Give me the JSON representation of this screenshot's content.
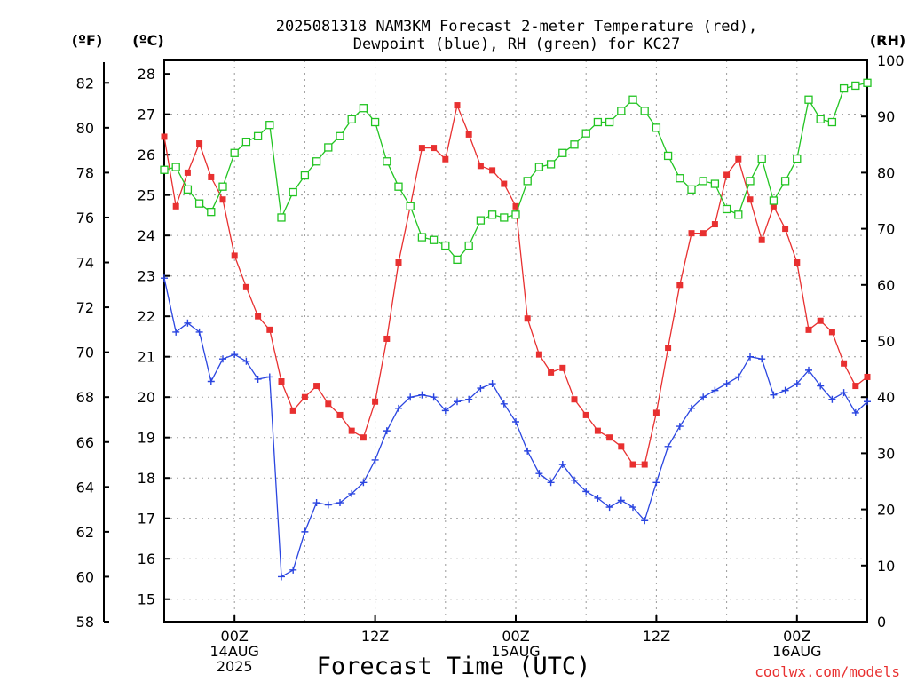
{
  "chart_data": {
    "type": "line",
    "title": [
      "2025081318 NAM3KM Forecast 2-meter Temperature (red),",
      "Dewpoint (blue), RH (green) for KC27"
    ],
    "xlabel": "Forecast Time (UTC)",
    "credit": "coolwx.com/models",
    "grid": true,
    "axes": {
      "left_f": {
        "unit": "(ºF)",
        "range": [
          58,
          83
        ],
        "ticks": [
          58,
          60,
          62,
          64,
          66,
          68,
          70,
          72,
          74,
          76,
          78,
          80,
          82
        ]
      },
      "left_c": {
        "unit": "(ºC)",
        "range": [
          14.444,
          28.333
        ],
        "ticks": [
          15,
          16,
          17,
          18,
          19,
          20,
          21,
          22,
          23,
          24,
          25,
          26,
          27,
          28
        ]
      },
      "right_rh": {
        "unit": "(RH)",
        "range": [
          0,
          100
        ],
        "ticks": [
          0,
          10,
          20,
          30,
          40,
          50,
          60,
          70,
          80,
          90,
          100
        ]
      }
    },
    "x_ticks": [
      {
        "hour": 6,
        "lines": [
          "00Z",
          "14AUG",
          "2025"
        ]
      },
      {
        "hour": 18,
        "lines": [
          "12Z"
        ]
      },
      {
        "hour": 30,
        "lines": [
          "00Z",
          "15AUG"
        ]
      },
      {
        "hour": 42,
        "lines": [
          "12Z"
        ]
      },
      {
        "hour": 54,
        "lines": [
          "00Z",
          "16AUG"
        ]
      }
    ],
    "x_range": [
      0,
      60
    ],
    "x_grid_hours": [
      6,
      12,
      18,
      24,
      30,
      36,
      42,
      48,
      54
    ],
    "series": [
      {
        "key": "temp",
        "axis": "left_f",
        "color": "#e83030",
        "marker": "filled-square",
        "values": [
          79.6,
          76.5,
          78.0,
          79.3,
          77.8,
          76.8,
          74.3,
          72.9,
          71.6,
          71.0,
          68.7,
          67.4,
          68.0,
          68.5,
          67.7,
          67.2,
          66.5,
          66.2,
          67.8,
          70.6,
          74.0,
          76.5,
          79.1,
          79.1,
          78.6,
          81.0,
          79.7,
          78.3,
          78.1,
          77.5,
          76.5,
          71.5,
          69.9,
          69.1,
          69.3,
          67.9,
          67.2,
          66.5,
          66.2,
          65.8,
          65.0,
          65.0,
          67.3,
          70.2,
          73.0,
          75.3,
          75.3,
          75.7,
          77.9,
          78.6,
          76.8,
          75.0,
          76.5,
          75.5,
          74.0,
          71.0,
          71.4,
          70.9,
          69.5,
          68.5,
          68.9
        ]
      },
      {
        "key": "dewpoint",
        "axis": "left_f",
        "color": "#2a45e0",
        "marker": "plus",
        "values": [
          73.3,
          70.9,
          71.3,
          70.9,
          68.7,
          69.7,
          69.9,
          69.6,
          68.8,
          68.9,
          60.0,
          60.3,
          62.0,
          63.3,
          63.2,
          63.3,
          63.7,
          64.2,
          65.2,
          66.5,
          67.5,
          68.0,
          68.1,
          68.0,
          67.4,
          67.8,
          67.9,
          68.4,
          68.6,
          67.7,
          66.9,
          65.6,
          64.6,
          64.2,
          65.0,
          64.3,
          63.8,
          63.5,
          63.1,
          63.4,
          63.1,
          62.5,
          64.2,
          65.8,
          66.7,
          67.5,
          68.0,
          68.3,
          68.6,
          68.9,
          69.8,
          69.7,
          68.1,
          68.3,
          68.6,
          69.2,
          68.5,
          67.9,
          68.2,
          67.3,
          67.8
        ]
      },
      {
        "key": "rh",
        "axis": "right_rh",
        "color": "#22c422",
        "marker": "open-square",
        "values": [
          80.5,
          81.0,
          77.0,
          74.5,
          73.0,
          77.5,
          83.5,
          85.5,
          86.5,
          88.5,
          72.0,
          76.5,
          79.5,
          82.0,
          84.5,
          86.5,
          89.5,
          91.5,
          89.0,
          82.0,
          77.5,
          74.0,
          68.5,
          68.0,
          67.0,
          64.5,
          67.0,
          71.5,
          72.5,
          72.0,
          72.5,
          78.5,
          81.0,
          81.5,
          83.5,
          85.0,
          87.0,
          89.0,
          89.0,
          91.0,
          93.0,
          91.0,
          88.0,
          83.0,
          79.0,
          77.0,
          78.5,
          78.0,
          73.5,
          72.5,
          78.5,
          82.5,
          75.0,
          78.5,
          82.5,
          93.0,
          89.5,
          89.0,
          95.0,
          95.5,
          96.0
        ]
      }
    ]
  }
}
